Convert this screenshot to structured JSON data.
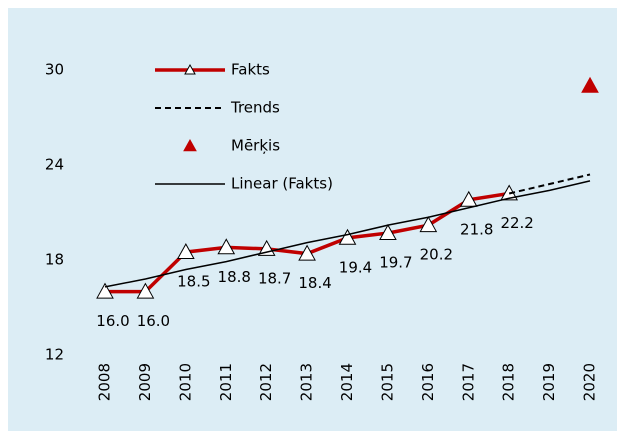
{
  "chart_data": {
    "type": "line",
    "categories": [
      "2008",
      "2009",
      "2010",
      "2011",
      "2012",
      "2013",
      "2014",
      "2015",
      "2016",
      "2017",
      "2018",
      "2019",
      "2020"
    ],
    "ylim": [
      12,
      30
    ],
    "yticks": [
      12,
      18,
      24,
      30
    ],
    "grid": false,
    "legend": "upper left",
    "background": "#dcedf5",
    "series": [
      {
        "name": "Fakts",
        "color": "#c00000",
        "line": true,
        "line_width": 3.5,
        "dashed": false,
        "marker": "triangle",
        "marker_fill": "#ffffff",
        "marker_stroke": "#000000",
        "values": [
          16.0,
          16.0,
          18.5,
          18.8,
          18.7,
          18.4,
          19.4,
          19.7,
          20.2,
          21.8,
          22.2,
          null,
          null
        ],
        "value_labels": [
          "16.0",
          "16.0",
          "18.5",
          "18.8",
          "18.7",
          "18.4",
          "19.4",
          "19.7",
          "20.2",
          "21.8",
          "22.2",
          null,
          null
        ]
      },
      {
        "name": "Trends",
        "color": "#000000",
        "line": true,
        "line_width": 2,
        "dashed": true,
        "values": [
          null,
          null,
          null,
          null,
          null,
          null,
          null,
          null,
          null,
          null,
          22.2,
          22.8,
          23.4
        ]
      },
      {
        "name": "Mērķis",
        "color": "#c00000",
        "line": false,
        "marker": "triangle",
        "marker_fill": "#c00000",
        "marker_stroke": "#c00000",
        "values": [
          null,
          null,
          null,
          null,
          null,
          null,
          null,
          null,
          null,
          null,
          null,
          null,
          29.0
        ]
      },
      {
        "name": "Linear (Fakts)",
        "color": "#000000",
        "line": true,
        "line_width": 1.5,
        "dashed": false,
        "values": [
          16.3,
          16.8,
          17.4,
          17.9,
          18.5,
          19.1,
          19.6,
          20.2,
          20.7,
          21.3,
          21.9,
          22.4,
          23.0
        ]
      }
    ]
  }
}
